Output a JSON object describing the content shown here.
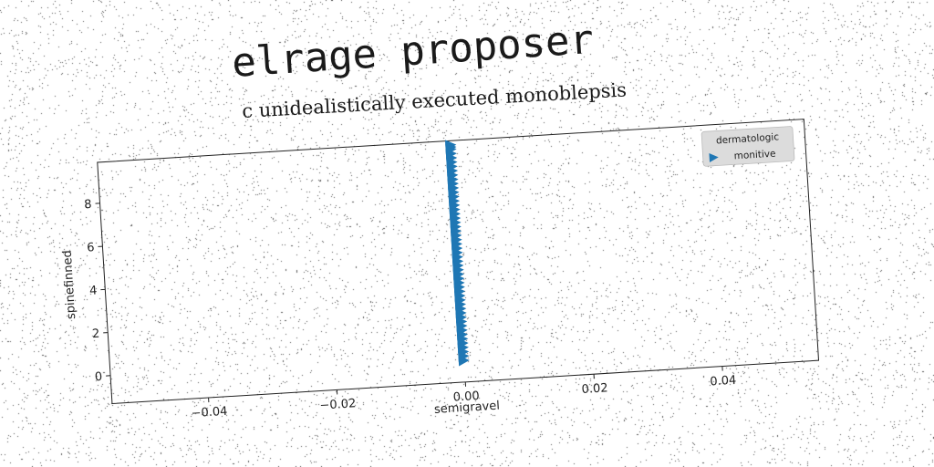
{
  "title": "elrage proposer",
  "subtitle": "c unidealistically executed monoblepsis",
  "chart_data": {
    "type": "scatter",
    "xlabel": "semigravel",
    "ylabel": "spinefinned",
    "xlim": [
      -0.055,
      0.055
    ],
    "ylim": [
      -1.3,
      9.9
    ],
    "xticks": [
      -0.04,
      -0.02,
      0.0,
      0.02,
      0.04
    ],
    "xtick_labels": [
      "−0.04",
      "−0.02",
      "0.00",
      "0.02",
      "0.04"
    ],
    "yticks": [
      0,
      2,
      4,
      6,
      8
    ],
    "ytick_labels": [
      "0",
      "2",
      "4",
      "6",
      "8"
    ],
    "grid": false,
    "legend": {
      "title": "dermatologic",
      "position": "top-right",
      "entries": [
        {
          "label": "monitive",
          "marker": "triangle-right",
          "color": "#1f77b4"
        }
      ]
    },
    "series": [
      {
        "name": "monitive",
        "marker": "triangle-right",
        "color": "#1f77b4",
        "x": [
          0,
          0,
          0,
          0,
          0,
          0,
          0,
          0,
          0,
          0,
          0,
          0,
          0,
          0,
          0,
          0,
          0,
          0,
          0,
          0,
          0,
          0,
          0,
          0,
          0,
          0,
          0,
          0,
          0,
          0,
          0,
          0,
          0,
          0,
          0,
          0,
          0,
          0,
          0,
          0,
          0,
          0,
          0,
          0,
          0,
          0,
          0,
          0,
          0,
          0,
          0,
          0
        ],
        "y": [
          -0.3,
          -0.1,
          0.1,
          0.3,
          0.5,
          0.7,
          0.9,
          1.1,
          1.3,
          1.5,
          1.7,
          1.9,
          2.1,
          2.3,
          2.5,
          2.7,
          2.9,
          3.1,
          3.3,
          3.5,
          3.7,
          3.9,
          4.1,
          4.3,
          4.5,
          4.7,
          4.9,
          5.1,
          5.3,
          5.5,
          5.7,
          5.9,
          6.1,
          6.3,
          6.5,
          6.7,
          6.9,
          7.1,
          7.3,
          7.5,
          7.7,
          7.9,
          8.1,
          8.3,
          8.5,
          8.7,
          8.9,
          9.1,
          9.3,
          9.5,
          9.6,
          9.7
        ]
      }
    ]
  }
}
